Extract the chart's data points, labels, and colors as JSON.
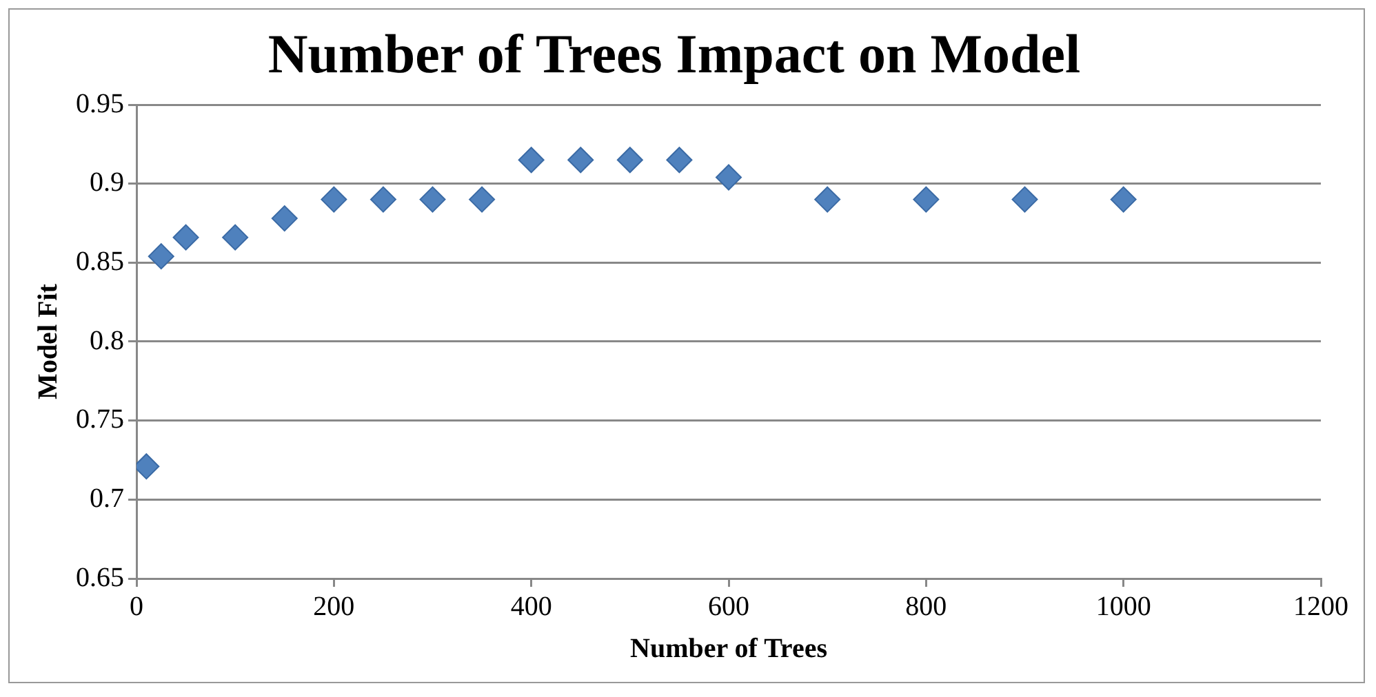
{
  "chart_data": {
    "type": "scatter",
    "title": "Number of Trees Impact on Model",
    "xlabel": "Number of Trees",
    "ylabel": "Model Fit",
    "x": [
      10,
      25,
      50,
      100,
      150,
      200,
      250,
      300,
      350,
      400,
      450,
      500,
      550,
      600,
      700,
      800,
      900,
      1000
    ],
    "series": [
      {
        "color": "#4f81bd",
        "values": [
          0.721,
          0.854,
          0.866,
          0.866,
          0.878,
          0.89,
          0.89,
          0.89,
          0.89,
          0.915,
          0.915,
          0.915,
          0.915,
          0.904,
          0.89,
          0.89,
          0.89,
          0.89
        ]
      }
    ],
    "xlim": [
      0,
      1200
    ],
    "xticks": [
      0,
      200,
      400,
      600,
      800,
      1000,
      1200
    ],
    "ylim": [
      0.65,
      0.95
    ],
    "yticks": [
      0.65,
      0.7,
      0.75,
      0.8,
      0.85,
      0.9,
      0.95
    ],
    "grid": "y",
    "legend": false,
    "marker": "diamond"
  }
}
